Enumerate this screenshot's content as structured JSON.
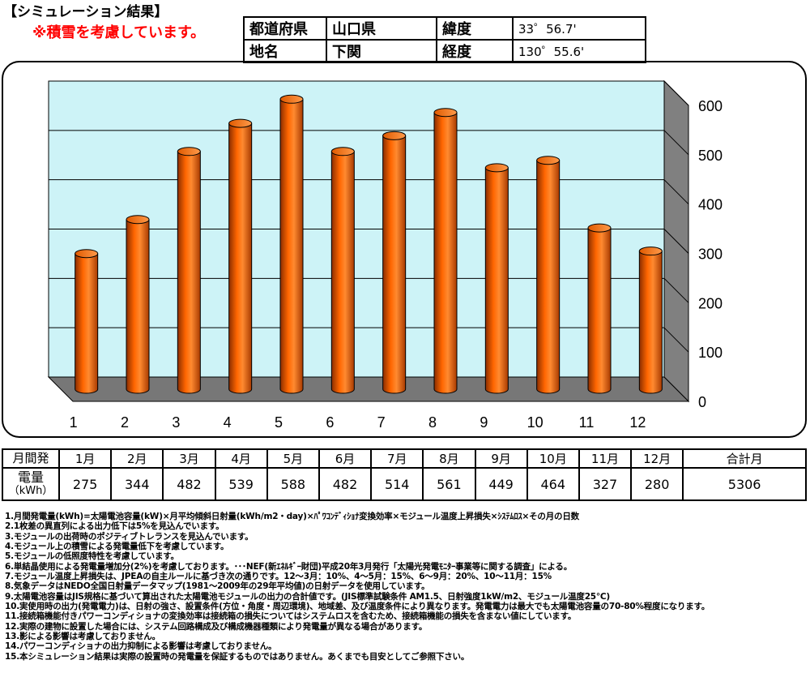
{
  "header": {
    "title": "【シミュレーション結果】",
    "note": "※積雪を考慮しています。"
  },
  "location": {
    "pref_label": "都道府県",
    "pref_value": "山口県",
    "lat_label": "緯度",
    "lat_value": "33゜56.7'",
    "place_label": "地名",
    "place_value": "下関",
    "lon_label": "経度",
    "lon_value": "130゜55.6'"
  },
  "chart_data": {
    "type": "bar",
    "categories": [
      "1",
      "2",
      "3",
      "4",
      "5",
      "6",
      "7",
      "8",
      "9",
      "10",
      "11",
      "12"
    ],
    "values": [
      275,
      344,
      482,
      539,
      588,
      482,
      514,
      561,
      449,
      464,
      327,
      280
    ],
    "ylim": [
      0,
      600
    ],
    "yticks": [
      "0",
      "100",
      "200",
      "300",
      "400",
      "500",
      "600"
    ],
    "grid": true,
    "bar_color": "#ff6600",
    "wall_color": "#cdf3f7"
  },
  "table": {
    "row_head_1": "月間発",
    "row_head_2a": "電量",
    "row_head_2b": "（kWh）",
    "months": [
      "1月",
      "2月",
      "3月",
      "4月",
      "5月",
      "6月",
      "7月",
      "8月",
      "9月",
      "10月",
      "11月",
      "12月"
    ],
    "values": [
      "275",
      "344",
      "482",
      "539",
      "588",
      "482",
      "514",
      "561",
      "449",
      "464",
      "327",
      "280"
    ],
    "total_label": "合計月",
    "total_value": "5306"
  },
  "notes": [
    "1.月間発電量(kWh)=太陽電池容量(kW)×月平均傾斜日射量(kWh/m2・day)×ﾊﾟﾜｺﾝﾃﾞｨｼｮﾅ変換効率×モジュール温度上昇損失×ｼｽﾃﾑﾛｽ×その月の日数",
    "2.1枚差の異直列による出力低下は5%を見込んでいます。",
    "3.モジュールの出荷時のポジティブトレランスを見込んでいます。",
    "4.モジュール上の積雪による発電量低下を考慮しています。",
    "5.モジュールの低照度特性を考慮しています。",
    "6.単結晶使用による発電量増加分(2%)を考慮しております。･･･NEF(新ｴﾈﾙｷﾞｰ財団)平成20年3月発行「太陽光発電ﾓﾆﾀｰ事業等に関する調査」による。",
    "7.モジュール温度上昇損失は、JPEAの自主ルールに基づき次の通りです。12～3月：10%、4～5月：15%、6～9月：20%、10～11月：15%",
    "8.気象データはNEDO全国日射量データマップ(1981～2009年の29年平均値)の日射データを使用しています。",
    "9.太陽電池容量はJIS規格に基づいて算出された太陽電池モジュールの出力の合計値です。(JIS標準試験条件 AM1.5、日射強度1kW/m2、モジュール温度25℃)",
    "10.実使用時の出力(発電電力)は、日射の強さ、設置条件(方位・角度・周辺環境)、地域差、及び温度条件により異なります。発電電力は最大でも太陽電池容量の70-80%程度になります。",
    "11.接続箱機能付きパワーコンディショナの変換効率は接続箱の損失についてはシステムロスを含むため、接続箱機能の損失を含まない値にしています。",
    "12.実際の建物に設置した場合には、システム回路構成及び構成機器種類により発電量が異なる場合があります。",
    "13.影による影響は考慮しておりません。",
    "14.パワーコンディショナの出力抑制による影響は考慮しておりません。",
    "15.本シミュレーション結果は実際の設置時の発電量を保証するものではありません。あくまでも目安としてご参照下さい。"
  ]
}
